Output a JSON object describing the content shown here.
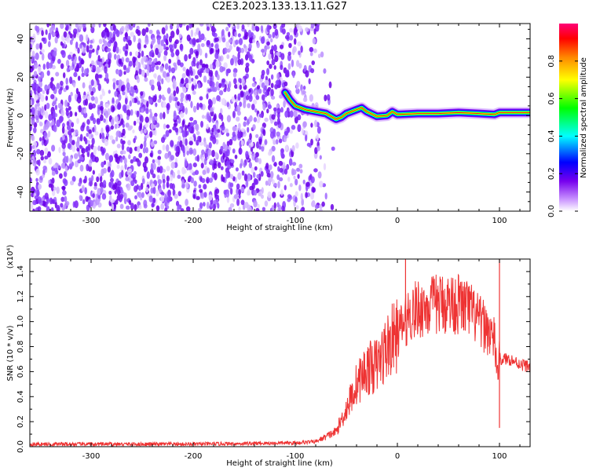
{
  "title": "C2E3.2023.133.13.11.G27",
  "chart_data": [
    {
      "id": "spectrogram",
      "type": "heatmap",
      "xlabel": "Height of straight line (km)",
      "ylabel": "Frequency (Hz)",
      "xlim": [
        -360,
        130
      ],
      "ylim": [
        -50,
        48
      ],
      "x_ticks": [
        -300,
        -200,
        -100,
        0,
        100
      ],
      "y_ticks": [
        -40,
        -20,
        0,
        20,
        40
      ],
      "colorbar": {
        "label": "Normalized spectral amplitude",
        "range": [
          0.0,
          1.0
        ],
        "ticks": [
          0.0,
          0.2,
          0.4,
          0.6,
          0.8
        ],
        "colors": [
          "#ffffff",
          "#cc99ff",
          "#7700ee",
          "#0000ff",
          "#00ffff",
          "#00ff00",
          "#ffff00",
          "#ff8800",
          "#ff0000",
          "#ff00aa"
        ]
      },
      "noise_region_x": [
        -360,
        -75
      ],
      "signal_track": {
        "x": [
          -110,
          -105,
          -100,
          -90,
          -80,
          -70,
          -60,
          -55,
          -50,
          -40,
          -35,
          -30,
          -20,
          -10,
          -5,
          0,
          20,
          40,
          60,
          80,
          95,
          100,
          130
        ],
        "freq": [
          12,
          8,
          5,
          3,
          2,
          1,
          -2,
          -1,
          1,
          3,
          4,
          2,
          -0.5,
          0,
          2,
          0.5,
          1,
          1,
          1.5,
          1,
          0.5,
          1.5,
          1.5
        ]
      }
    },
    {
      "id": "snr",
      "type": "line",
      "xlabel": "Height of straight line (km)",
      "ylabel": "SNR (10 * v/v)",
      "y_multiplier": "(x10⁴)",
      "xlim": [
        -360,
        130
      ],
      "ylim": [
        0,
        1.5
      ],
      "x_ticks": [
        -300,
        -200,
        -100,
        0,
        100
      ],
      "y_ticks": [
        0.0,
        0.2,
        0.4,
        0.6,
        0.8,
        1.0,
        1.2,
        1.4
      ],
      "color": "#ee3333",
      "series": [
        {
          "x": [
            -360,
            -300,
            -200,
            -100,
            -80,
            -60,
            -50,
            -40,
            -30,
            -20,
            -10,
            0,
            8,
            10,
            20,
            30,
            40,
            50,
            60,
            70,
            80,
            90,
            95,
            98,
            100,
            110,
            120,
            130
          ],
          "values": [
            0.02,
            0.02,
            0.02,
            0.03,
            0.04,
            0.12,
            0.3,
            0.5,
            0.62,
            0.65,
            0.8,
            0.9,
            1.0,
            1.05,
            1.1,
            1.12,
            1.14,
            1.15,
            1.14,
            1.1,
            1.0,
            0.92,
            0.85,
            0.6,
            0.7,
            0.7,
            0.66,
            0.64
          ]
        }
      ],
      "spikes": [
        {
          "x": 8,
          "value": 1.5
        },
        {
          "x": 100,
          "value": 1.5
        },
        {
          "x": 100,
          "value": 0.15
        }
      ]
    }
  ]
}
